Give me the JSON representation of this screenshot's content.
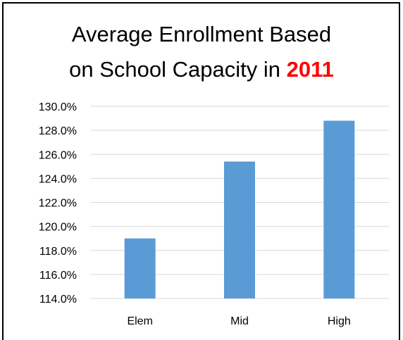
{
  "chart_data": {
    "type": "bar",
    "title": "Average Enrollment Based on School Capacity in 2011",
    "title_line1": "Average Enrollment Based",
    "title_line2_prefix": "on School Capacity in ",
    "title_line2_year": "2011",
    "categories": [
      "Elem",
      "Mid",
      "High"
    ],
    "values": [
      119.0,
      125.4,
      128.8
    ],
    "xlabel": "",
    "ylabel": "",
    "ylim": [
      114.0,
      130.0
    ],
    "yticks": [
      "114.0%",
      "116.0%",
      "118.0%",
      "120.0%",
      "122.0%",
      "124.0%",
      "126.0%",
      "128.0%",
      "130.0%"
    ],
    "grid": true,
    "legend": "none",
    "colors": {
      "bar": "#5b9bd5",
      "grid": "#d9d9d9",
      "year_highlight": "#ff0000"
    }
  }
}
